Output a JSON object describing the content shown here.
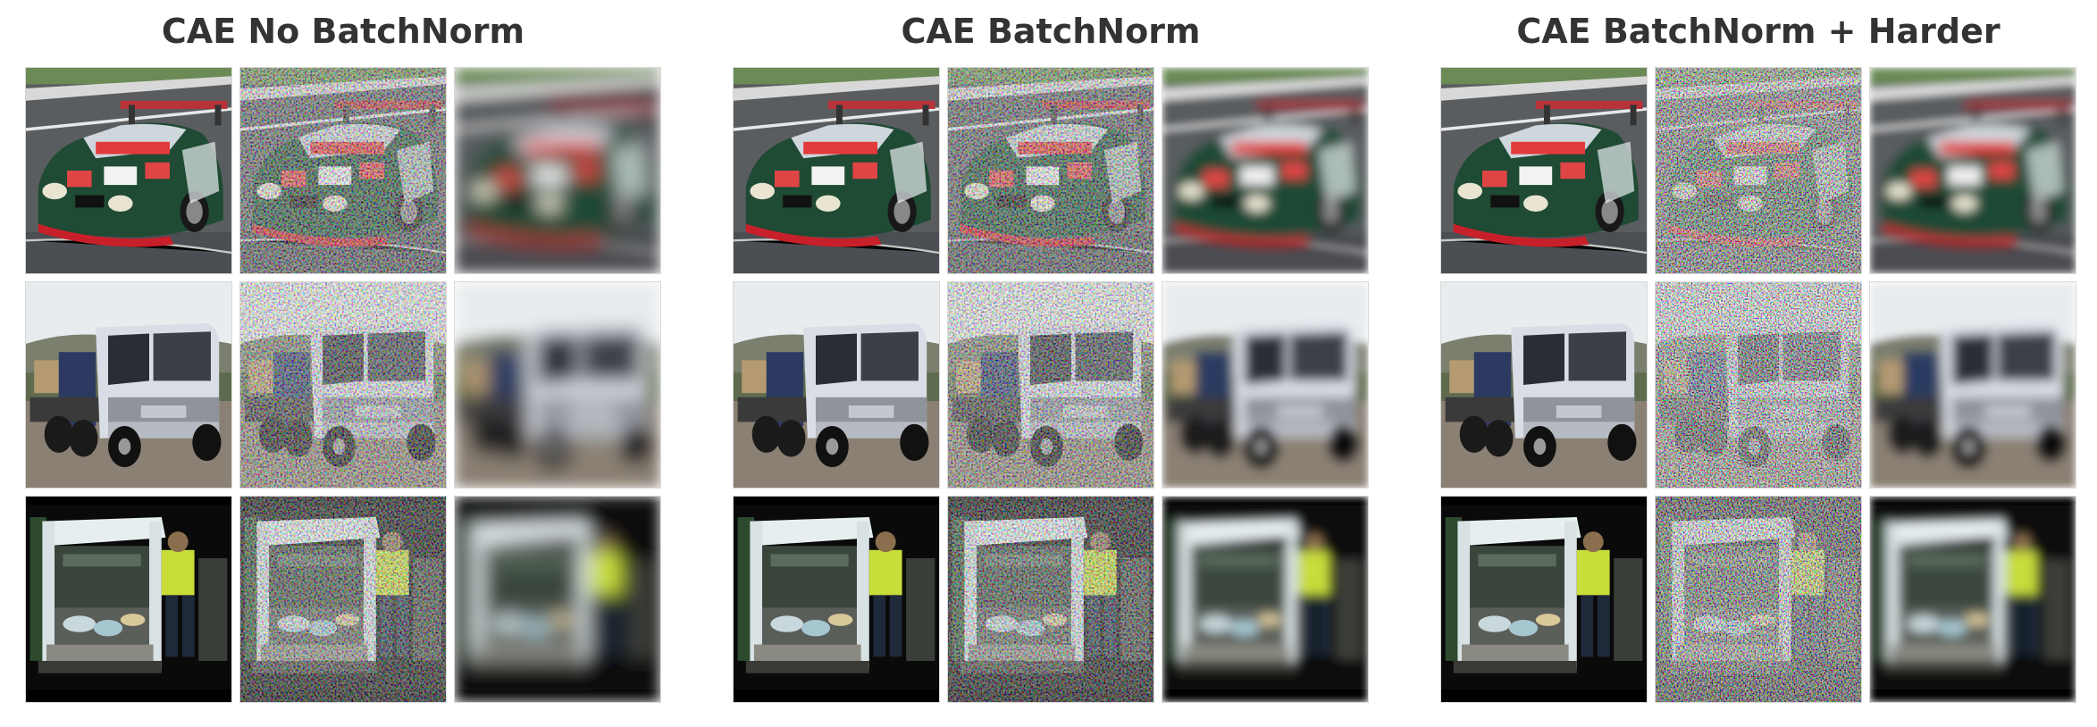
{
  "panels": [
    {
      "title": "CAE No BatchNorm"
    },
    {
      "title": "CAE BatchNorm"
    },
    {
      "title": "CAE BatchNorm + Harder"
    }
  ],
  "rows": [
    {
      "subject": "race-car"
    },
    {
      "subject": "white-truck"
    },
    {
      "subject": "garbage-truck"
    }
  ],
  "columns": [
    "original",
    "noisy",
    "reconstruction"
  ]
}
